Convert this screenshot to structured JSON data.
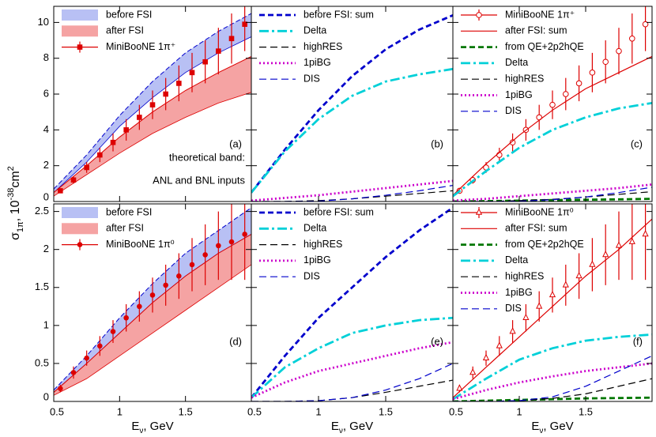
{
  "chart_data": [
    {
      "type": "line",
      "panel_label": "(a)",
      "ylabel": [
        "σ",
        "1π",
        ", 10",
        "-38",
        "cm",
        "2"
      ],
      "annotations": [
        "theoretical band:",
        "ANL and BNL inputs"
      ],
      "xlim": [
        0.5,
        2.0
      ],
      "ylim": [
        0,
        10.9
      ],
      "xticks": [
        0.5,
        1,
        1.5
      ],
      "yticks": [
        0,
        2,
        4,
        6,
        8,
        10
      ],
      "legend": "upper-left",
      "x": [
        0.5,
        0.75,
        1.0,
        1.25,
        1.5,
        1.75,
        2.0
      ],
      "series": [
        {
          "name": "before FSI",
          "kind": "band",
          "color": "#b8c0f4",
          "edge": "#0000cc",
          "values": [
            0.7,
            2.6,
            4.8,
            6.7,
            8.3,
            9.5,
            10.5
          ],
          "lower": [
            0.5,
            2.2,
            4.2,
            5.8,
            7.2,
            8.3,
            9.2
          ]
        },
        {
          "name": "after FSI",
          "kind": "band",
          "color": "#f5a3a3",
          "edge": "#dd0000",
          "values": [
            0.5,
            2.0,
            3.6,
            5.0,
            6.2,
            7.2,
            8.1
          ],
          "lower": [
            0.3,
            1.5,
            2.7,
            3.8,
            4.7,
            5.5,
            6.1
          ]
        },
        {
          "name": "MiniBooNE 1π⁺",
          "kind": "points",
          "marker": "square",
          "color": "#dd0000",
          "x": [
            0.55,
            0.65,
            0.75,
            0.85,
            0.95,
            1.05,
            1.15,
            1.25,
            1.35,
            1.45,
            1.55,
            1.65,
            1.75,
            1.85,
            1.95
          ],
          "values": [
            0.6,
            1.2,
            1.9,
            2.6,
            3.3,
            4.0,
            4.7,
            5.4,
            6.0,
            6.6,
            7.2,
            7.8,
            8.4,
            9.1,
            9.9
          ],
          "errors": [
            0.1,
            0.2,
            0.3,
            0.4,
            0.5,
            0.6,
            0.7,
            0.8,
            0.9,
            1.0,
            1.1,
            1.2,
            1.3,
            1.4,
            1.5
          ]
        }
      ]
    },
    {
      "type": "line",
      "panel_label": "(b)",
      "xlim": [
        0.5,
        2.0
      ],
      "ylim": [
        0,
        10.9
      ],
      "xticks": [
        0.5,
        1,
        1.5
      ],
      "yticks": [
        0,
        2,
        4,
        6,
        8,
        10
      ],
      "legend": "upper-left",
      "x": [
        0.5,
        0.75,
        1.0,
        1.25,
        1.5,
        1.75,
        2.0
      ],
      "series": [
        {
          "name": "before FSI: sum",
          "kind": "line",
          "style": "dashed",
          "thick": true,
          "color": "#0000cc",
          "values": [
            0.5,
            2.9,
            5.1,
            7.0,
            8.5,
            9.6,
            10.4
          ]
        },
        {
          "name": "Delta",
          "kind": "line",
          "style": "dash-dot",
          "thick": true,
          "color": "#00d0d8",
          "values": [
            0.5,
            2.8,
            4.6,
            5.9,
            6.7,
            7.1,
            7.4
          ]
        },
        {
          "name": "highRES",
          "kind": "line",
          "style": "dashed",
          "thick": false,
          "color": "#000000",
          "values": [
            0,
            0,
            0.05,
            0.15,
            0.3,
            0.45,
            0.6
          ]
        },
        {
          "name": "1piBG",
          "kind": "line",
          "style": "dotted",
          "thick": true,
          "color": "#cc00cc",
          "values": [
            0.05,
            0.2,
            0.35,
            0.55,
            0.75,
            0.95,
            1.15
          ]
        },
        {
          "name": "DIS",
          "kind": "line",
          "style": "dashed",
          "thick": false,
          "color": "#0000cc",
          "values": [
            0,
            0,
            0.02,
            0.15,
            0.35,
            0.6,
            0.9
          ]
        }
      ]
    },
    {
      "type": "line",
      "panel_label": "(c)",
      "xlim": [
        0.5,
        2.0
      ],
      "ylim": [
        0,
        10.9
      ],
      "xticks": [
        0.5,
        1,
        1.5
      ],
      "yticks": [
        0,
        2,
        4,
        6,
        8,
        10
      ],
      "legend": "upper-left",
      "x": [
        0.5,
        0.75,
        1.0,
        1.25,
        1.5,
        1.75,
        2.0
      ],
      "series": [
        {
          "name": "MiniBooNE 1π⁺",
          "kind": "points",
          "marker": "open-circle",
          "color": "#dd0000",
          "x": [
            0.55,
            0.65,
            0.75,
            0.85,
            0.95,
            1.05,
            1.15,
            1.25,
            1.35,
            1.45,
            1.55,
            1.65,
            1.75,
            1.85,
            1.95
          ],
          "values": [
            0.6,
            1.2,
            1.9,
            2.6,
            3.3,
            4.0,
            4.7,
            5.4,
            6.0,
            6.6,
            7.2,
            7.8,
            8.4,
            9.1,
            9.9
          ],
          "errors": [
            0.1,
            0.2,
            0.3,
            0.4,
            0.5,
            0.6,
            0.7,
            0.8,
            0.9,
            1.0,
            1.1,
            1.2,
            1.3,
            1.4,
            1.5
          ]
        },
        {
          "name": "after FSI: sum",
          "kind": "line",
          "style": "solid",
          "thick": false,
          "color": "#dd0000",
          "values": [
            0.35,
            2.1,
            3.7,
            5.1,
            6.3,
            7.2,
            8.1
          ]
        },
        {
          "name": "from QE+2p2hQE",
          "kind": "line",
          "style": "dashed",
          "thick": true,
          "color": "#007700",
          "values": [
            0,
            0.02,
            0.05,
            0.08,
            0.1,
            0.12,
            0.15
          ]
        },
        {
          "name": "Delta",
          "kind": "line",
          "style": "dash-dot",
          "thick": true,
          "color": "#00d0d8",
          "values": [
            0.3,
            1.7,
            3.0,
            4.0,
            4.7,
            5.2,
            5.5
          ]
        },
        {
          "name": "highRES",
          "kind": "line",
          "style": "dashed",
          "thick": false,
          "color": "#000000",
          "values": [
            0,
            0,
            0.05,
            0.12,
            0.25,
            0.4,
            0.55
          ]
        },
        {
          "name": "1piBG",
          "kind": "line",
          "style": "dotted",
          "thick": true,
          "color": "#cc00cc",
          "values": [
            0.05,
            0.15,
            0.3,
            0.45,
            0.6,
            0.75,
            0.95
          ]
        },
        {
          "name": "DIS",
          "kind": "line",
          "style": "dashed",
          "thick": false,
          "color": "#0000cc",
          "values": [
            0,
            0,
            0.02,
            0.1,
            0.25,
            0.5,
            0.8
          ]
        }
      ]
    },
    {
      "type": "line",
      "panel_label": "(d)",
      "xlabel": [
        "E",
        "ν",
        ", GeV"
      ],
      "xlim": [
        0.5,
        2.0
      ],
      "ylim": [
        0,
        2.6
      ],
      "xticks": [
        0.5,
        1,
        1.5
      ],
      "yticks": [
        0,
        0.5,
        1,
        1.5,
        2,
        2.5
      ],
      "legend": "upper-left",
      "x": [
        0.5,
        0.75,
        1.0,
        1.25,
        1.5,
        1.75,
        2.0
      ],
      "series": [
        {
          "name": "before FSI",
          "kind": "band",
          "color": "#b8c0f4",
          "edge": "#0000cc",
          "values": [
            0.15,
            0.6,
            1.1,
            1.55,
            1.95,
            2.25,
            2.55
          ],
          "lower": [
            0.12,
            0.5,
            0.9,
            1.3,
            1.65,
            1.95,
            2.2
          ]
        },
        {
          "name": "after FSI",
          "kind": "band",
          "color": "#f5a3a3",
          "edge": "#dd0000",
          "values": [
            0.12,
            0.5,
            0.9,
            1.3,
            1.65,
            1.95,
            2.2
          ],
          "lower": [
            0.08,
            0.3,
            0.6,
            0.9,
            1.2,
            1.5,
            1.8
          ]
        },
        {
          "name": "MiniBooNE 1π⁰",
          "kind": "points",
          "marker": "circle",
          "color": "#dd0000",
          "x": [
            0.55,
            0.65,
            0.75,
            0.85,
            0.95,
            1.05,
            1.15,
            1.25,
            1.35,
            1.45,
            1.55,
            1.65,
            1.75,
            1.85,
            1.95
          ],
          "values": [
            0.17,
            0.38,
            0.57,
            0.73,
            0.92,
            1.1,
            1.25,
            1.4,
            1.53,
            1.65,
            1.8,
            1.93,
            2.05,
            2.1,
            2.2
          ],
          "errors": [
            0.05,
            0.08,
            0.1,
            0.13,
            0.15,
            0.18,
            0.2,
            0.23,
            0.27,
            0.3,
            0.35,
            0.4,
            0.45,
            0.5,
            0.6
          ]
        }
      ]
    },
    {
      "type": "line",
      "panel_label": "(e)",
      "xlabel": [
        "E",
        "ν",
        ", GeV"
      ],
      "xlim": [
        0.5,
        2.0
      ],
      "ylim": [
        0,
        2.6
      ],
      "xticks": [
        0.5,
        1,
        1.5
      ],
      "yticks": [
        0,
        0.5,
        1,
        1.5,
        2,
        2.5
      ],
      "legend": "upper-left",
      "x": [
        0.5,
        0.75,
        1.0,
        1.25,
        1.5,
        1.75,
        2.0
      ],
      "series": [
        {
          "name": "before FSI: sum",
          "kind": "line",
          "style": "dashed",
          "thick": true,
          "color": "#0000cc",
          "values": [
            0.05,
            0.6,
            1.1,
            1.5,
            1.9,
            2.25,
            2.55
          ]
        },
        {
          "name": "Delta",
          "kind": "line",
          "style": "dash-dot",
          "thick": true,
          "color": "#00d0d8",
          "values": [
            0.05,
            0.45,
            0.7,
            0.9,
            1.0,
            1.07,
            1.1
          ]
        },
        {
          "name": "highRES",
          "kind": "line",
          "style": "dashed",
          "thick": false,
          "color": "#000000",
          "values": [
            0,
            0,
            0.01,
            0.05,
            0.12,
            0.2,
            0.28
          ]
        },
        {
          "name": "1piBG",
          "kind": "line",
          "style": "dotted",
          "thick": true,
          "color": "#cc00cc",
          "values": [
            0.05,
            0.25,
            0.4,
            0.5,
            0.6,
            0.7,
            0.78
          ]
        },
        {
          "name": "DIS",
          "kind": "line",
          "style": "dashed",
          "thick": false,
          "color": "#0000cc",
          "values": [
            0,
            0,
            0.01,
            0.05,
            0.15,
            0.3,
            0.5
          ]
        }
      ]
    },
    {
      "type": "line",
      "panel_label": "(f)",
      "xlabel": [
        "E",
        "ν",
        ", GeV"
      ],
      "xlim": [
        0.5,
        2.0
      ],
      "ylim": [
        0,
        2.6
      ],
      "xticks": [
        0.5,
        1,
        1.5
      ],
      "yticks": [
        0,
        0.5,
        1,
        1.5,
        2,
        2.5
      ],
      "legend": "upper-left",
      "x": [
        0.5,
        0.75,
        1.0,
        1.25,
        1.5,
        1.75,
        2.0
      ],
      "series": [
        {
          "name": "MiniBooNE 1π⁰",
          "kind": "points",
          "marker": "open-triangle",
          "color": "#dd0000",
          "x": [
            0.55,
            0.65,
            0.75,
            0.85,
            0.95,
            1.05,
            1.15,
            1.25,
            1.35,
            1.45,
            1.55,
            1.65,
            1.75,
            1.85,
            1.95
          ],
          "values": [
            0.17,
            0.38,
            0.57,
            0.73,
            0.92,
            1.1,
            1.25,
            1.4,
            1.53,
            1.65,
            1.8,
            1.93,
            2.05,
            2.1,
            2.2
          ],
          "errors": [
            0.05,
            0.08,
            0.1,
            0.13,
            0.15,
            0.18,
            0.2,
            0.23,
            0.27,
            0.3,
            0.35,
            0.4,
            0.45,
            0.5,
            0.6
          ]
        },
        {
          "name": "after FSI: sum",
          "kind": "line",
          "style": "solid",
          "thick": false,
          "color": "#dd0000",
          "values": [
            0.05,
            0.45,
            0.85,
            1.25,
            1.65,
            2.0,
            2.4
          ]
        },
        {
          "name": "from QE+2p2hQE",
          "kind": "line",
          "style": "dashed",
          "thick": true,
          "color": "#007700",
          "values": [
            0,
            0.01,
            0.02,
            0.03,
            0.04,
            0.045,
            0.05
          ]
        },
        {
          "name": "Delta",
          "kind": "line",
          "style": "dash-dot",
          "thick": true,
          "color": "#00d0d8",
          "values": [
            0.03,
            0.3,
            0.55,
            0.7,
            0.8,
            0.85,
            0.88
          ]
        },
        {
          "name": "highRES",
          "kind": "line",
          "style": "dashed",
          "thick": false,
          "color": "#000000",
          "values": [
            0,
            0,
            0.01,
            0.04,
            0.1,
            0.2,
            0.3
          ]
        },
        {
          "name": "1piBG",
          "kind": "line",
          "style": "dotted",
          "thick": true,
          "color": "#cc00cc",
          "values": [
            0.03,
            0.15,
            0.25,
            0.33,
            0.4,
            0.45,
            0.5
          ]
        },
        {
          "name": "DIS",
          "kind": "line",
          "style": "dashed",
          "thick": false,
          "color": "#0000cc",
          "values": [
            0,
            0,
            0.01,
            0.06,
            0.2,
            0.4,
            0.6
          ]
        }
      ]
    }
  ]
}
